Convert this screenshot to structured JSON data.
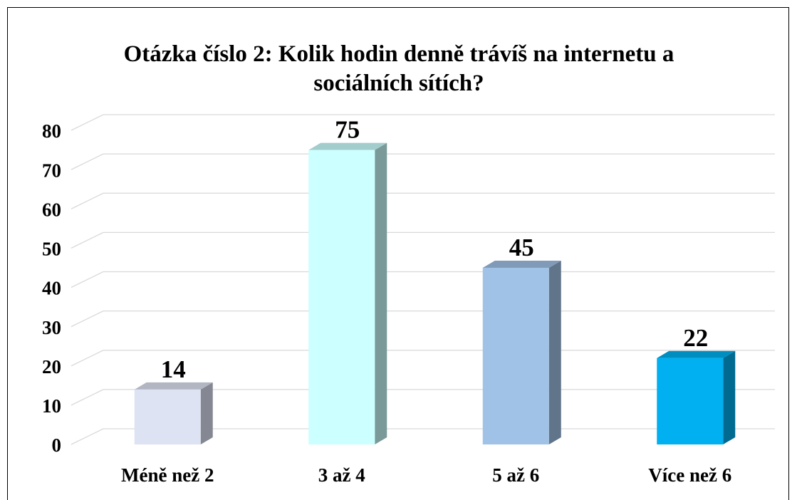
{
  "chart_data": {
    "type": "bar3d",
    "title": "Otázka číslo 2: Kolik hodin denně trávíš na internetu a sociálních sítích?",
    "categories": [
      "Méně než 2",
      "3 až 4",
      "5 až 6",
      "Více než 6"
    ],
    "values": [
      14,
      75,
      45,
      22
    ],
    "colors": [
      "#dde3f3",
      "#ccffff",
      "#a0c2e6",
      "#00b0f0"
    ],
    "ylim": [
      0,
      80
    ],
    "yticks": [
      0,
      10,
      20,
      30,
      40,
      50,
      60,
      70,
      80
    ],
    "grid": true
  }
}
